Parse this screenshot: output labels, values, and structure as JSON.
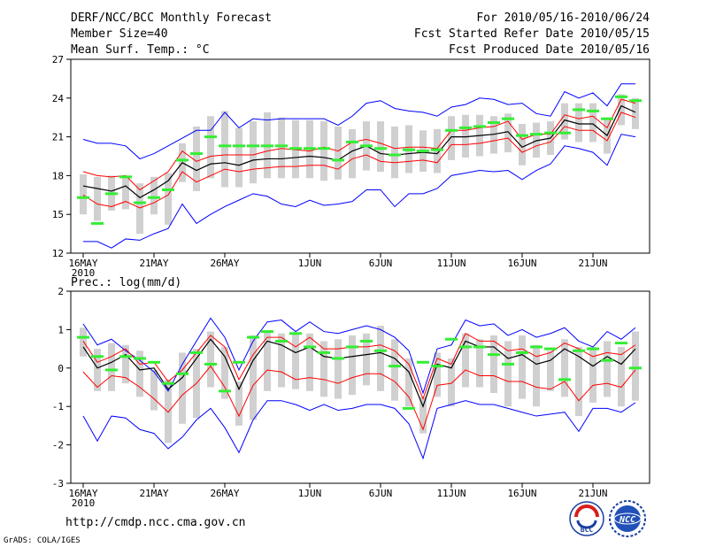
{
  "header": {
    "title": "DERF/NCC/BCC Monthly Forecast",
    "member_size": "Member Size=40",
    "variable": "Mean Surf. Temp.: °C",
    "period": "For 2010/05/16-2010/06/24",
    "refer_date": "Fcst Started Refer Date 2010/05/15",
    "produced_date": "Fcst Produced Date 2010/05/16"
  },
  "footer": {
    "url": "http://cmdp.ncc.cma.gov.cn",
    "grads": "GrADS: COLA/IGES",
    "logo_bcc": "BCC",
    "logo_ncc": "NCC"
  },
  "colors": {
    "envelope": "#0000ff",
    "percentile": "#ff0000",
    "median": "#000000",
    "box": "#d0d0d0",
    "observed": "#33ee33"
  },
  "chart_data": [
    {
      "type": "line",
      "title": "Mean Surf. Temp.: °C",
      "x_start_year_label": "2010",
      "x_tick_labels": [
        "16MAY",
        "21MAY",
        "26MAY",
        "1JUN",
        "6JUN",
        "11JUN",
        "16JUN",
        "21JUN"
      ],
      "x_tick_days": [
        0,
        5,
        10,
        16,
        21,
        26,
        31,
        36
      ],
      "days": 39,
      "ylim": [
        12,
        27
      ],
      "yticks": [
        12,
        15,
        18,
        21,
        24,
        27
      ],
      "series": [
        {
          "name": "max",
          "values": [
            20.8,
            20.5,
            20.5,
            20.3,
            19.3,
            19.7,
            20.3,
            20.9,
            21.5,
            21.5,
            22.9,
            21.7,
            22.4,
            22.3,
            22.4,
            22.4,
            22.4,
            22.4,
            21.9,
            22.6,
            23.6,
            23.8,
            23.2,
            23.0,
            22.9,
            22.6,
            23.3,
            23.5,
            24.0,
            23.9,
            23.5,
            23.6,
            22.8,
            22.6,
            24.5,
            24.0,
            24.4,
            23.4,
            25.1,
            25.1
          ]
        },
        {
          "name": "p75",
          "values": [
            18.3,
            18.0,
            17.9,
            18.0,
            16.9,
            17.6,
            18.3,
            19.9,
            19.1,
            19.5,
            19.6,
            19.6,
            19.6,
            19.9,
            20.1,
            20.0,
            19.9,
            20.2,
            19.9,
            20.6,
            20.8,
            20.5,
            20.1,
            20.2,
            20.2,
            20.1,
            21.5,
            21.5,
            21.7,
            21.8,
            22.2,
            20.8,
            21.2,
            21.2,
            22.7,
            22.4,
            22.6,
            21.7,
            23.9,
            23.6
          ]
        },
        {
          "name": "median",
          "values": [
            17.2,
            17.0,
            16.8,
            17.2,
            16.3,
            16.9,
            17.6,
            19.0,
            18.4,
            18.9,
            19.0,
            18.8,
            19.2,
            19.3,
            19.3,
            19.4,
            19.5,
            19.4,
            19.2,
            19.9,
            20.3,
            19.7,
            19.6,
            19.7,
            19.8,
            19.7,
            21.0,
            21.0,
            21.1,
            21.2,
            21.4,
            20.2,
            20.7,
            20.9,
            22.3,
            22.0,
            22.0,
            21.1,
            23.4,
            22.9
          ]
        },
        {
          "name": "p25",
          "values": [
            16.5,
            15.8,
            15.6,
            16.0,
            15.5,
            15.9,
            16.5,
            18.3,
            17.5,
            18.0,
            18.5,
            18.3,
            18.5,
            18.6,
            18.7,
            18.7,
            18.8,
            18.8,
            18.5,
            19.3,
            19.6,
            19.1,
            19.0,
            19.1,
            19.2,
            19.0,
            20.4,
            20.4,
            20.5,
            20.7,
            20.9,
            19.8,
            20.3,
            20.6,
            21.8,
            21.5,
            21.5,
            20.7,
            22.9,
            22.5
          ]
        },
        {
          "name": "min",
          "values": [
            12.9,
            12.9,
            12.4,
            13.1,
            13.0,
            13.5,
            13.9,
            15.8,
            14.3,
            15.0,
            15.6,
            16.1,
            16.6,
            16.4,
            15.8,
            15.6,
            16.1,
            15.7,
            15.8,
            16.0,
            16.9,
            16.9,
            15.6,
            16.6,
            16.6,
            17.0,
            18.0,
            18.2,
            18.4,
            18.3,
            18.4,
            17.7,
            18.4,
            18.9,
            20.3,
            20.1,
            19.8,
            18.8,
            21.2,
            21.0
          ]
        },
        {
          "name": "box_low",
          "values": [
            15.0,
            14.5,
            15.3,
            15.4,
            13.5,
            15.0,
            14.2,
            17.5,
            16.8,
            17.8,
            17.1,
            17.1,
            17.4,
            17.8,
            17.8,
            17.8,
            17.8,
            17.6,
            17.7,
            17.8,
            18.4,
            18.3,
            17.8,
            18.2,
            18.3,
            18.2,
            19.2,
            19.4,
            19.5,
            19.7,
            19.8,
            18.8,
            19.4,
            19.6,
            20.8,
            20.6,
            20.6,
            19.7,
            21.9,
            21.6
          ]
        },
        {
          "name": "box_high",
          "values": [
            18.1,
            17.9,
            18.0,
            18.0,
            17.4,
            17.9,
            18.2,
            20.5,
            21.8,
            22.6,
            23.0,
            21.7,
            22.2,
            22.9,
            22.5,
            22.3,
            22.3,
            22.2,
            21.8,
            21.6,
            22.2,
            22.2,
            21.8,
            21.9,
            21.5,
            21.6,
            22.6,
            22.7,
            22.7,
            22.6,
            22.8,
            22.0,
            22.1,
            22.2,
            23.6,
            23.6,
            23.6,
            22.4,
            24.3,
            24.0
          ]
        },
        {
          "name": "observed",
          "values": [
            16.3,
            14.3,
            16.6,
            17.9,
            15.9,
            16.3,
            16.9,
            19.2,
            19.7,
            21.0,
            20.3,
            20.3,
            20.3,
            20.3,
            20.3,
            20.1,
            20.1,
            20.1,
            19.2,
            20.6,
            20.3,
            20.1,
            19.6,
            20.0,
            19.9,
            20.0,
            21.5,
            21.7,
            21.8,
            22.1,
            22.4,
            21.1,
            21.2,
            21.3,
            21.3,
            23.1,
            23.0,
            22.4,
            24.1,
            23.8
          ]
        }
      ]
    },
    {
      "type": "line",
      "title": "Prec.: log(mm/d)",
      "x_start_year_label": "2010",
      "x_tick_labels": [
        "16MAY",
        "21MAY",
        "26MAY",
        "1JUN",
        "6JUN",
        "11JUN",
        "16JUN",
        "21JUN"
      ],
      "x_tick_days": [
        0,
        5,
        10,
        16,
        21,
        26,
        31,
        36
      ],
      "days": 39,
      "ylim": [
        -3,
        2
      ],
      "yticks": [
        -3,
        -2,
        -1,
        0,
        1,
        2
      ],
      "series": [
        {
          "name": "max",
          "values": [
            1.15,
            0.6,
            0.75,
            0.45,
            0.2,
            -0.1,
            -0.6,
            0.1,
            0.7,
            1.3,
            0.8,
            -0.05,
            0.7,
            1.2,
            1.25,
            0.95,
            1.2,
            0.95,
            0.9,
            1.0,
            1.1,
            1.0,
            0.8,
            0.45,
            -0.65,
            0.5,
            0.6,
            1.25,
            1.1,
            1.15,
            0.85,
            1.0,
            0.8,
            0.9,
            1.05,
            0.7,
            0.55,
            0.95,
            0.75,
            1.05
          ]
        },
        {
          "name": "p75",
          "values": [
            0.7,
            0.15,
            0.3,
            0.5,
            0.1,
            0.15,
            -0.35,
            -0.05,
            0.4,
            0.85,
            0.55,
            -0.3,
            0.35,
            0.8,
            0.8,
            0.55,
            0.8,
            0.5,
            0.5,
            0.55,
            0.55,
            0.6,
            0.45,
            0.1,
            -0.8,
            0.25,
            0.1,
            0.9,
            0.7,
            0.7,
            0.45,
            0.5,
            0.3,
            0.4,
            0.65,
            0.5,
            0.3,
            0.4,
            0.35,
            0.6
          ]
        },
        {
          "name": "median",
          "values": [
            0.55,
            0.0,
            0.15,
            0.35,
            -0.05,
            0.0,
            -0.55,
            -0.25,
            0.25,
            0.75,
            0.3,
            -0.55,
            0.2,
            0.7,
            0.6,
            0.4,
            0.55,
            0.3,
            0.25,
            0.3,
            0.35,
            0.4,
            0.25,
            -0.1,
            -1.0,
            0.1,
            0.0,
            0.7,
            0.55,
            0.55,
            0.25,
            0.35,
            0.1,
            0.2,
            0.5,
            0.3,
            0.05,
            0.3,
            0.1,
            0.5
          ]
        },
        {
          "name": "p25",
          "values": [
            -0.1,
            -0.5,
            -0.2,
            -0.25,
            -0.5,
            -0.8,
            -1.15,
            -0.7,
            -0.4,
            0.05,
            -0.5,
            -1.25,
            -0.45,
            -0.05,
            -0.1,
            -0.3,
            -0.25,
            -0.3,
            -0.4,
            -0.25,
            -0.15,
            -0.15,
            -0.35,
            -0.75,
            -1.6,
            -0.45,
            -0.4,
            -0.05,
            -0.2,
            -0.2,
            -0.35,
            -0.35,
            -0.5,
            -0.55,
            -0.35,
            -0.85,
            -0.45,
            -0.4,
            -0.5,
            -0.05
          ]
        },
        {
          "name": "min",
          "values": [
            -1.25,
            -1.9,
            -1.25,
            -1.3,
            -1.6,
            -1.7,
            -2.1,
            -1.8,
            -1.35,
            -1.05,
            -1.55,
            -2.2,
            -1.35,
            -0.85,
            -0.85,
            -0.95,
            -1.1,
            -0.95,
            -1.1,
            -1.05,
            -0.95,
            -0.95,
            -1.05,
            -1.45,
            -2.35,
            -1.05,
            -0.95,
            -0.85,
            -0.95,
            -0.95,
            -1.05,
            -1.15,
            -1.25,
            -1.2,
            -1.15,
            -1.65,
            -1.05,
            -1.05,
            -1.15,
            -0.9
          ]
        },
        {
          "name": "box_low",
          "values": [
            0.3,
            -0.6,
            -0.6,
            -0.4,
            -0.75,
            -1.1,
            -1.95,
            -1.45,
            -1.3,
            -0.5,
            -0.8,
            -1.5,
            -1.35,
            -0.6,
            -0.5,
            -0.55,
            -0.6,
            -0.75,
            -0.8,
            -0.7,
            -0.45,
            -0.6,
            -0.85,
            -1.0,
            -1.7,
            -0.75,
            -1.0,
            -0.5,
            -0.5,
            -0.65,
            -1.0,
            -0.8,
            -1.0,
            -0.6,
            -0.75,
            -1.25,
            -0.9,
            -0.75,
            -1.0,
            -0.85
          ]
        },
        {
          "name": "box_high",
          "values": [
            1.05,
            0.5,
            0.65,
            0.6,
            0.45,
            -0.05,
            -0.3,
            0.4,
            0.5,
            0.95,
            0.55,
            -0.35,
            0.85,
            0.95,
            0.9,
            0.9,
            0.9,
            0.7,
            0.75,
            0.85,
            0.9,
            1.1,
            0.75,
            0.25,
            -0.75,
            0.4,
            0.25,
            0.9,
            0.75,
            0.85,
            0.7,
            0.85,
            0.6,
            0.45,
            0.75,
            0.55,
            0.55,
            0.7,
            0.55,
            0.95
          ]
        },
        {
          "name": "observed",
          "values": [
            0.8,
            0.3,
            -0.05,
            0.3,
            0.25,
            0.15,
            -0.4,
            -0.15,
            0.4,
            0.1,
            -0.6,
            0.15,
            0.8,
            0.95,
            0.7,
            0.9,
            0.55,
            0.4,
            0.25,
            0.55,
            0.7,
            0.45,
            0.05,
            -1.05,
            0.15,
            0.05,
            0.75,
            0.55,
            0.55,
            0.35,
            0.1,
            0.4,
            0.55,
            0.5,
            -0.3,
            0.45,
            0.5,
            0.2,
            0.65,
            0.0
          ]
        }
      ]
    }
  ]
}
